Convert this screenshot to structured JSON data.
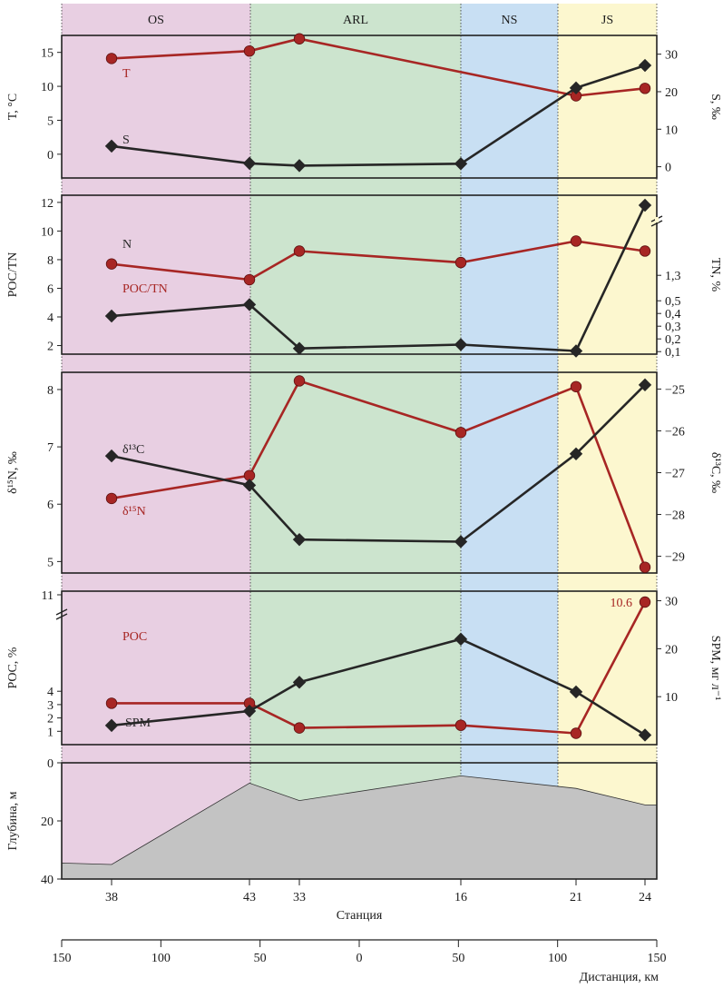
{
  "colors": {
    "OS": "#e8cfe2",
    "ARL": "#cce4ce",
    "NS": "#c8dff3",
    "JS": "#fcf7cf",
    "red": "#a72624",
    "black": "#262626",
    "bottom_fill": "#c3c3c3"
  },
  "zones": [
    {
      "label": "OS",
      "start": 0,
      "end": 43
    },
    {
      "label": "ARL",
      "start": 43,
      "end": 16
    },
    {
      "label": "NS",
      "start": 16,
      "end": "20.5"
    },
    {
      "label": "JS",
      "start": "20.5",
      "end": 24
    }
  ],
  "stations": {
    "labels": [
      "38",
      "43",
      "33",
      "16",
      "21",
      "24"
    ],
    "axis_label": "Станция"
  },
  "distance_axis": {
    "tick_labels": [
      "150",
      "100",
      "50",
      "0",
      "50",
      "100",
      "150"
    ],
    "label": "Дистанция, км"
  },
  "chart_data": [
    {
      "type": "line",
      "ylabel_left": "T, °C",
      "ylabel_right": "S, ‰",
      "ylim_left": [
        -3.5,
        17.5
      ],
      "ylim_right": [
        -3,
        35
      ],
      "ticks_left": [
        "0",
        "5",
        "10",
        "15"
      ],
      "ticks_right": [
        "0",
        "10",
        "20",
        "30"
      ],
      "series": [
        {
          "name": "T",
          "axis": "left",
          "marker": "circle",
          "color": "red",
          "x": [
            "38",
            "43",
            "33",
            "21",
            "24"
          ],
          "y": [
            14.1,
            15.2,
            17,
            8.6,
            9.7
          ]
        },
        {
          "name": "S",
          "axis": "right",
          "marker": "diamond",
          "color": "black",
          "x": [
            "38",
            "43",
            "33",
            "16",
            "21",
            "24"
          ],
          "y": [
            5.5,
            0.9,
            0.3,
            0.8,
            21,
            27
          ]
        }
      ]
    },
    {
      "type": "line",
      "ylabel_left": "POC/TN",
      "ylabel_right": "TN, %",
      "ylim_left": [
        1.4,
        12.5
      ],
      "ylim_right": [
        0.08,
        1.33
      ],
      "ticks_left": [
        "2",
        "4",
        "6",
        "8",
        "10",
        "12"
      ],
      "ticks_right": [
        "0,1",
        "0,2",
        "0,3",
        "0,4",
        "0,5",
        "1,3"
      ],
      "series": [
        {
          "name": "POC/TN",
          "axis": "left",
          "marker": "circle",
          "color": "red",
          "x": [
            "38",
            "43",
            "33",
            "16",
            "21",
            "24"
          ],
          "y": [
            7.7,
            6.6,
            8.6,
            7.8,
            9.3,
            8.6
          ]
        },
        {
          "name": "N",
          "axis": "right",
          "marker": "diamond",
          "color": "black",
          "x": [
            "38",
            "43",
            "33",
            "16",
            "21",
            "24"
          ],
          "y": [
            0.38,
            0.47,
            0.125,
            0.155,
            0.105,
            1.3
          ]
        }
      ]
    },
    {
      "type": "line",
      "ylabel_left": "δ¹⁵N, ‰",
      "ylabel_right": "δ¹³C, ‰",
      "ylim_left": [
        4.8,
        8.3
      ],
      "ylim_right": [
        -29.4,
        -24.6
      ],
      "ticks_left": [
        "5",
        "6",
        "7",
        "8"
      ],
      "ticks_right": [
        "−29",
        "−28",
        "−27",
        "−26",
        "−25"
      ],
      "series": [
        {
          "name": "δ¹⁵N",
          "axis": "left",
          "marker": "circle",
          "color": "red",
          "x": [
            "38",
            "43",
            "33",
            "16",
            "21",
            "24"
          ],
          "y": [
            6.1,
            6.5,
            8.15,
            7.25,
            8.05,
            4.9
          ]
        },
        {
          "name": "δ¹³C",
          "axis": "right",
          "marker": "diamond",
          "color": "black",
          "x": [
            "38",
            "43",
            "33",
            "16",
            "21",
            "24"
          ],
          "y": [
            -26.6,
            -27.3,
            -28.6,
            -28.65,
            -26.55,
            -24.9
          ]
        }
      ]
    },
    {
      "type": "line",
      "ylabel_left": "POC, %",
      "ylabel_right": "SPM, мг л⁻¹",
      "ylim_left": [
        0,
        11.5
      ],
      "ylim_right": [
        0,
        32
      ],
      "ticks_left": [
        "1",
        "2",
        "3",
        "4",
        "11"
      ],
      "ticks_right": [
        "10",
        "20",
        "30"
      ],
      "series": [
        {
          "name": "POC",
          "axis": "left",
          "marker": "circle",
          "color": "red",
          "x": [
            "38",
            "43",
            "33",
            "16",
            "21",
            "24"
          ],
          "y": [
            3.1,
            3.1,
            1.25,
            1.45,
            0.85,
            10.6
          ]
        },
        {
          "name": "SPM",
          "axis": "right",
          "marker": "diamond",
          "color": "black",
          "x": [
            "38",
            "43",
            "33",
            "16",
            "21",
            "24"
          ],
          "y": [
            4,
            7,
            13,
            22,
            11,
            2
          ]
        }
      ],
      "annotations": [
        {
          "text": "10.6",
          "series": "POC",
          "station": "24"
        }
      ]
    },
    {
      "type": "area",
      "ylabel_left": "Глубина, м",
      "ylim_left": [
        40,
        0
      ],
      "ticks_left": [
        "0",
        "20",
        "40"
      ],
      "series": [
        {
          "name": "",
          "color": "bottom_fill",
          "x": [
            "38",
            "43",
            "33",
            "16",
            "21",
            "24"
          ],
          "y": [
            35,
            7,
            13,
            4.5,
            8.8,
            14.5
          ]
        }
      ]
    }
  ]
}
